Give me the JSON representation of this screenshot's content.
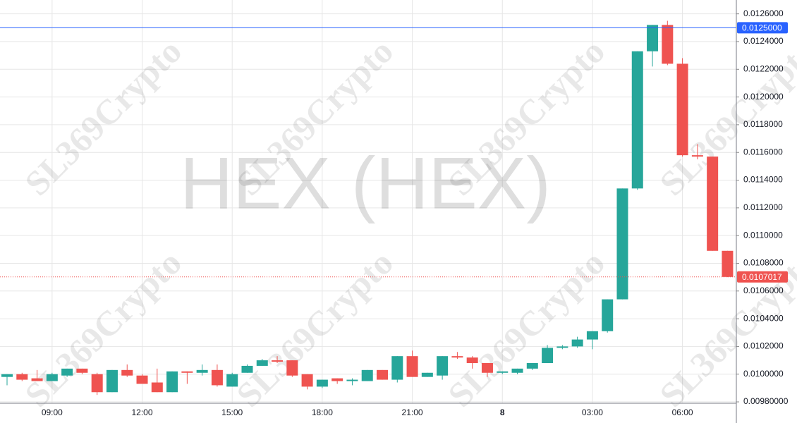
{
  "chart_data": {
    "type": "candlestick",
    "watermark": "HEX (HEX)",
    "brand_watermark": "SL369Crypto",
    "categories": [
      null,
      null,
      null,
      "09:00",
      null,
      null,
      null,
      null,
      null,
      "12:00",
      null,
      null,
      null,
      null,
      null,
      "15:00",
      null,
      null,
      null,
      null,
      null,
      "18:00",
      null,
      null,
      null,
      null,
      null,
      "21:00",
      null,
      null,
      null,
      null,
      null,
      "8",
      null,
      null,
      null,
      null,
      null,
      "03:00",
      null,
      null,
      null,
      null,
      null,
      "06:00",
      null,
      null,
      null
    ],
    "series": [
      {
        "up_color": "#26a69a",
        "down_color": "#ef5350",
        "open": [
          0.00998,
          0.01,
          0.00997,
          0.00995,
          0.00999,
          0.01004,
          0.01,
          0.00987,
          0.01003,
          0.00999,
          0.00994,
          0.00987,
          0.01002,
          0.01001,
          0.01003,
          0.00991,
          0.01001,
          0.01006,
          0.0101,
          0.0101,
          0.01,
          0.00991,
          0.00997,
          0.00995,
          0.00995,
          0.01003,
          0.00996,
          0.01013,
          0.00998,
          0.00999,
          0.01013,
          0.01012,
          0.01008,
          0.01001,
          0.01001,
          0.01004,
          0.01008,
          0.01019,
          0.0102,
          0.01025,
          0.01031,
          0.01054,
          0.01134,
          0.01233,
          0.01252,
          0.01224,
          0.01158,
          0.01157,
          0.01089
        ],
        "high": [
          0.01,
          0.01001,
          0.01003,
          0.01001,
          0.01004,
          0.01004,
          0.01001,
          0.01003,
          0.01007,
          0.01,
          0.01004,
          0.01002,
          0.01002,
          0.01007,
          0.01007,
          0.01001,
          0.01007,
          0.01011,
          0.01013,
          0.0101,
          0.01,
          0.00996,
          0.00997,
          0.00997,
          0.01003,
          0.01003,
          0.01013,
          0.01017,
          0.01001,
          0.01013,
          0.01016,
          0.01013,
          0.01008,
          0.01002,
          0.01004,
          0.01008,
          0.01021,
          0.01021,
          0.01027,
          0.01031,
          0.01054,
          0.01134,
          0.01233,
          0.01252,
          0.01255,
          0.01228,
          0.01166,
          0.01157,
          0.01089
        ],
        "low": [
          0.00992,
          0.00995,
          0.00995,
          0.00995,
          0.00998,
          0.01,
          0.00985,
          0.00987,
          0.00998,
          0.00993,
          0.00987,
          0.00987,
          0.00993,
          0.00999,
          0.00991,
          0.00991,
          0.01001,
          0.01006,
          0.01008,
          0.00998,
          0.00989,
          0.0099,
          0.00993,
          0.00992,
          0.00995,
          0.00996,
          0.00994,
          0.00998,
          0.00998,
          0.00996,
          0.01011,
          0.01004,
          0.00998,
          0.01,
          0.01,
          0.01003,
          0.01008,
          0.01018,
          0.01019,
          0.01018,
          0.0103,
          0.01054,
          0.01133,
          0.01222,
          0.01223,
          0.01157,
          0.01155,
          0.01089,
          0.0107
        ],
        "close": [
          0.01,
          0.00996,
          0.00995,
          0.01,
          0.01004,
          0.01001,
          0.00987,
          0.01003,
          0.00999,
          0.00993,
          0.00987,
          0.01002,
          0.01001,
          0.01003,
          0.00992,
          0.01,
          0.01006,
          0.0101,
          0.01009,
          0.00999,
          0.00991,
          0.00996,
          0.00995,
          0.00996,
          0.01003,
          0.00996,
          0.01013,
          0.00998,
          0.01001,
          0.01013,
          0.01012,
          0.01008,
          0.01001,
          0.01002,
          0.01004,
          0.01008,
          0.01019,
          0.0102,
          0.01025,
          0.01031,
          0.01054,
          0.01134,
          0.01233,
          0.01252,
          0.01224,
          0.01158,
          0.01157,
          0.01089,
          0.0107017
        ]
      }
    ],
    "ylim": [
      0.00979,
      0.0127
    ],
    "yticks": [
      {
        "value": 0.0098,
        "label": "0.00980000"
      },
      {
        "value": 0.01,
        "label": "0.0100000"
      },
      {
        "value": 0.0102,
        "label": "0.0102000"
      },
      {
        "value": 0.0104,
        "label": "0.0104000"
      },
      {
        "value": 0.0106,
        "label": "0.0106000"
      },
      {
        "value": 0.0108,
        "label": "0.0108000"
      },
      {
        "value": 0.011,
        "label": "0.0110000"
      },
      {
        "value": 0.0112,
        "label": "0.0112000"
      },
      {
        "value": 0.0114,
        "label": "0.0114000"
      },
      {
        "value": 0.0116,
        "label": "0.0116000"
      },
      {
        "value": 0.0118,
        "label": "0.0118000"
      },
      {
        "value": 0.012,
        "label": "0.0120000"
      },
      {
        "value": 0.0122,
        "label": "0.0122000"
      },
      {
        "value": 0.0124,
        "label": "0.0124000"
      },
      {
        "value": 0.0126,
        "label": "0.0126000"
      }
    ],
    "grid": true,
    "price_line": {
      "value": 0.0125,
      "label": "0.0125000",
      "color": "#2962ff"
    },
    "last_price": {
      "value": 0.0107017,
      "label": "0.0107017",
      "color": "#ef5350"
    }
  }
}
